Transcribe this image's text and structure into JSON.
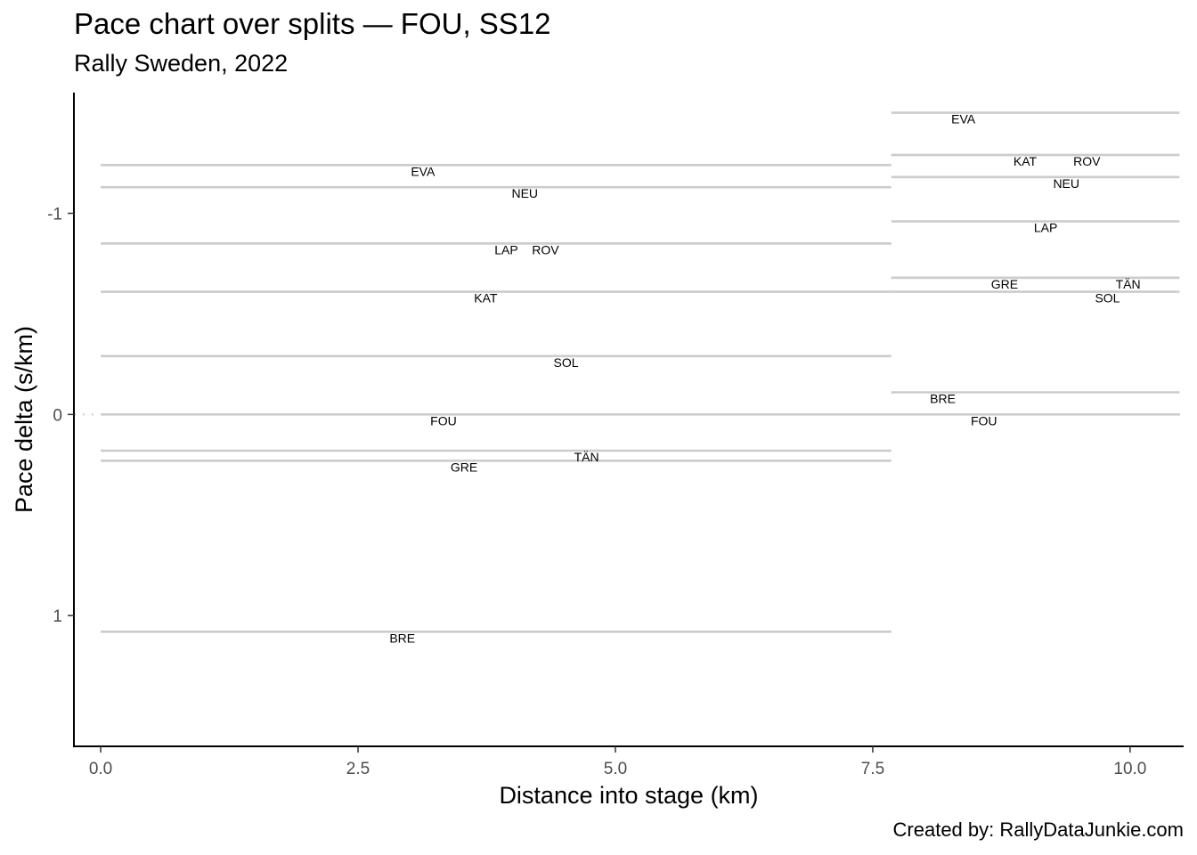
{
  "header": {
    "title": "Pace chart over splits — FOU, SS12",
    "subtitle": "Rally Sweden, 2022"
  },
  "caption": "Created by: RallyDataJunkie.com",
  "chart_data": {
    "type": "line",
    "title": "Pace chart over splits — FOU, SS12",
    "subtitle": "Rally Sweden, 2022",
    "xlabel": "Distance into stage (km)",
    "ylabel": "Pace delta (s/km)",
    "xlim": [
      -0.26,
      10.52
    ],
    "ylim": [
      1.65,
      -1.6
    ],
    "y_reversed": true,
    "x_ticks": [
      0,
      2.5,
      5,
      7.5,
      10
    ],
    "x_tick_labels": [
      "0.0",
      "2.5",
      "5.0",
      "7.5",
      "10.0"
    ],
    "y_ticks": [
      -1,
      0,
      1
    ],
    "y_tick_labels": [
      "-1",
      "0",
      "1"
    ],
    "reference_line": {
      "y": 0,
      "style": "dotted"
    },
    "grid": false,
    "line_color": "#cccccc",
    "splits": [
      {
        "start_km": 0,
        "end_km": 7.68,
        "drivers": [
          {
            "name": "EVA",
            "pace": -1.24,
            "label_x": 3.13
          },
          {
            "name": "NEU",
            "pace": -1.13,
            "label_x": 4.12
          },
          {
            "name": "LAP",
            "pace": -0.85,
            "label_x": 3.94
          },
          {
            "name": "ROV",
            "pace": -0.85,
            "label_x": 4.32
          },
          {
            "name": "KAT",
            "pace": -0.61,
            "label_x": 3.74
          },
          {
            "name": "SOL",
            "pace": -0.29,
            "label_x": 4.52
          },
          {
            "name": "FOU",
            "pace": 0.0,
            "label_x": 3.33
          },
          {
            "name": "TÄN",
            "pace": 0.18,
            "label_x": 4.72
          },
          {
            "name": "GRE",
            "pace": 0.23,
            "label_x": 3.53
          },
          {
            "name": "BRE",
            "pace": 1.08,
            "label_x": 2.93
          }
        ]
      },
      {
        "start_km": 7.68,
        "end_km": 10.48,
        "drivers": [
          {
            "name": "EVA",
            "pace": -1.5,
            "label_x": 8.38
          },
          {
            "name": "KAT",
            "pace": -1.29,
            "label_x": 8.98
          },
          {
            "name": "ROV",
            "pace": -1.29,
            "label_x": 9.58
          },
          {
            "name": "NEU",
            "pace": -1.18,
            "label_x": 9.38
          },
          {
            "name": "LAP",
            "pace": -0.96,
            "label_x": 9.18
          },
          {
            "name": "GRE",
            "pace": -0.68,
            "label_x": 8.78
          },
          {
            "name": "TÄN",
            "pace": -0.68,
            "label_x": 9.98
          },
          {
            "name": "SOL",
            "pace": -0.61,
            "label_x": 9.78
          },
          {
            "name": "BRE",
            "pace": -0.11,
            "label_x": 8.18
          },
          {
            "name": "FOU",
            "pace": 0.0,
            "label_x": 8.58
          }
        ]
      }
    ]
  }
}
